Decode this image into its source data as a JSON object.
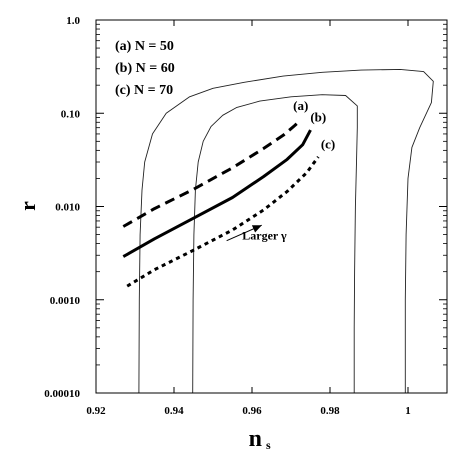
{
  "chart_data": {
    "type": "line",
    "xlabel": "n",
    "xlabel_sub": "s",
    "ylabel": "r",
    "xlim": [
      0.92,
      1.01
    ],
    "ylim": [
      0.0001,
      1.0
    ],
    "yscale": "log",
    "x_ticks": [
      {
        "value": 0.92,
        "label": "0.92"
      },
      {
        "value": 0.94,
        "label": "0.94"
      },
      {
        "value": 0.96,
        "label": "0.96"
      },
      {
        "value": 0.98,
        "label": "0.98"
      },
      {
        "value": 1.0,
        "label": "1"
      }
    ],
    "y_ticks": [
      {
        "value": 0.0001,
        "label": "0.00010"
      },
      {
        "value": 0.001,
        "label": "0.0010"
      },
      {
        "value": 0.01,
        "label": "0.010"
      },
      {
        "value": 0.1,
        "label": "0.10"
      },
      {
        "value": 1.0,
        "label": "1.0"
      }
    ],
    "legend": [
      "(a) N = 50",
      "(b) N = 60",
      "(c) N = 70"
    ],
    "series": [
      {
        "name": "(a)",
        "style": "dashed",
        "x": [
          0.927,
          0.935,
          0.945,
          0.955,
          0.963,
          0.968,
          0.971,
          0.9725
        ],
        "y": [
          0.0061,
          0.0095,
          0.0153,
          0.026,
          0.042,
          0.058,
          0.074,
          0.085
        ]
      },
      {
        "name": "(b)",
        "style": "solid",
        "x": [
          0.927,
          0.935,
          0.945,
          0.955,
          0.963,
          0.969,
          0.973,
          0.975
        ],
        "y": [
          0.0029,
          0.0045,
          0.0075,
          0.0125,
          0.021,
          0.032,
          0.046,
          0.066
        ]
      },
      {
        "name": "(c)",
        "style": "dotted",
        "x": [
          0.928,
          0.935,
          0.945,
          0.955,
          0.963,
          0.969,
          0.974,
          0.977
        ],
        "y": [
          0.0014,
          0.0021,
          0.0034,
          0.0056,
          0.0092,
          0.0145,
          0.023,
          0.034
        ]
      }
    ],
    "contours": [
      {
        "name": "outer",
        "x": [
          0.931,
          0.9311,
          0.9313,
          0.9318,
          0.9325,
          0.9345,
          0.938,
          0.944,
          0.95,
          0.958,
          0.968,
          0.978,
          0.988,
          0.998,
          1.004,
          1.0065,
          1.006,
          1.003,
          1.001,
          1.0,
          0.9995,
          0.9993,
          0.9993
        ],
        "y": [
          0.0001,
          0.001,
          0.005,
          0.015,
          0.03,
          0.06,
          0.1,
          0.15,
          0.185,
          0.215,
          0.25,
          0.275,
          0.29,
          0.295,
          0.28,
          0.22,
          0.13,
          0.07,
          0.043,
          0.02,
          0.005,
          0.001,
          0.0001
        ]
      },
      {
        "name": "inner",
        "x": [
          0.9448,
          0.9449,
          0.9451,
          0.9455,
          0.9462,
          0.9475,
          0.9495,
          0.9525,
          0.956,
          0.962,
          0.97,
          0.978,
          0.984,
          0.987,
          0.987,
          0.9868,
          0.9865,
          0.9863,
          0.9862,
          0.9862
        ],
        "y": [
          0.0001,
          0.001,
          0.005,
          0.015,
          0.03,
          0.05,
          0.072,
          0.095,
          0.115,
          0.135,
          0.15,
          0.158,
          0.155,
          0.12,
          0.07,
          0.03,
          0.01,
          0.002,
          0.0005,
          0.0001
        ]
      }
    ],
    "curve_labels": [
      {
        "text": "(a)",
        "x": 0.9725,
        "y": 0.108
      },
      {
        "text": "(b)",
        "x": 0.977,
        "y": 0.082
      },
      {
        "text": "(c)",
        "x": 0.9795,
        "y": 0.042
      }
    ],
    "annotation": {
      "text": "Larger γ",
      "x": 0.9575,
      "y": 0.00445
    },
    "arrow": {
      "x1": 0.9535,
      "y1": 0.0043,
      "x2": 0.9625,
      "y2": 0.0063
    }
  }
}
